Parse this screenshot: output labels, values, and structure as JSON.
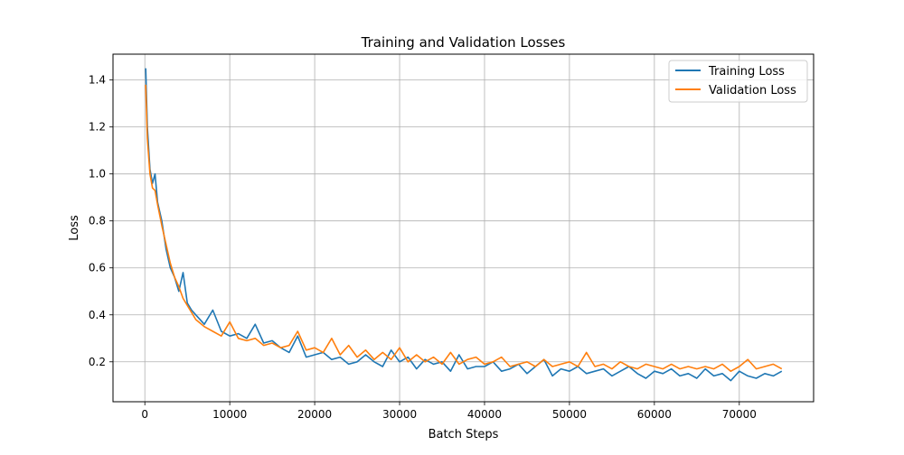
{
  "chart_data": {
    "type": "line",
    "title": "Training and Validation Losses",
    "xlabel": "Batch Steps",
    "ylabel": "Loss",
    "xlim": [
      -3750,
      78750
    ],
    "ylim": [
      0.03,
      1.51
    ],
    "xticks": [
      0,
      10000,
      20000,
      30000,
      40000,
      50000,
      60000,
      70000
    ],
    "xtick_labels": [
      "0",
      "10000",
      "20000",
      "30000",
      "40000",
      "50000",
      "60000",
      "70000"
    ],
    "yticks": [
      0.2,
      0.4,
      0.6,
      0.8,
      1.0,
      1.2,
      1.4
    ],
    "ytick_labels": [
      "0.2",
      "0.4",
      "0.6",
      "0.8",
      "1.0",
      "1.2",
      "1.4"
    ],
    "grid": true,
    "legend_position": "top-right",
    "series": [
      {
        "name": "Training Loss",
        "color": "#1f77b4",
        "x": [
          100,
          300,
          600,
          900,
          1200,
          1500,
          2000,
          2500,
          3000,
          3500,
          4000,
          4500,
          5000,
          5500,
          6000,
          7000,
          8000,
          9000,
          10000,
          11000,
          12000,
          13000,
          14000,
          15000,
          16000,
          17000,
          18000,
          19000,
          20000,
          21000,
          22000,
          23000,
          24000,
          25000,
          26000,
          27000,
          28000,
          29000,
          30000,
          31000,
          32000,
          33000,
          34000,
          35000,
          36000,
          37000,
          38000,
          39000,
          40000,
          41000,
          42000,
          43000,
          44000,
          45000,
          46000,
          47000,
          48000,
          49000,
          50000,
          51000,
          52000,
          53000,
          54000,
          55000,
          56000,
          57000,
          58000,
          59000,
          60000,
          61000,
          62000,
          63000,
          64000,
          65000,
          66000,
          67000,
          68000,
          69000,
          70000,
          71000,
          72000,
          73000,
          74000,
          75000
        ],
        "y": [
          1.45,
          1.2,
          1.02,
          0.96,
          1.0,
          0.88,
          0.8,
          0.68,
          0.6,
          0.56,
          0.5,
          0.58,
          0.45,
          0.42,
          0.4,
          0.36,
          0.42,
          0.33,
          0.31,
          0.32,
          0.3,
          0.36,
          0.28,
          0.29,
          0.26,
          0.24,
          0.31,
          0.22,
          0.23,
          0.24,
          0.21,
          0.22,
          0.19,
          0.2,
          0.23,
          0.2,
          0.18,
          0.25,
          0.2,
          0.22,
          0.17,
          0.21,
          0.19,
          0.2,
          0.16,
          0.23,
          0.17,
          0.18,
          0.18,
          0.2,
          0.16,
          0.17,
          0.19,
          0.15,
          0.18,
          0.21,
          0.14,
          0.17,
          0.16,
          0.18,
          0.15,
          0.16,
          0.17,
          0.14,
          0.16,
          0.18,
          0.15,
          0.13,
          0.16,
          0.15,
          0.17,
          0.14,
          0.15,
          0.13,
          0.17,
          0.14,
          0.15,
          0.12,
          0.16,
          0.14,
          0.13,
          0.15,
          0.14,
          0.16
        ]
      },
      {
        "name": "Validation Loss",
        "color": "#ff7f0e",
        "x": [
          100,
          300,
          600,
          900,
          1200,
          1500,
          2000,
          2500,
          3000,
          3500,
          4000,
          4500,
          5000,
          5500,
          6000,
          7000,
          8000,
          9000,
          10000,
          11000,
          12000,
          13000,
          14000,
          15000,
          16000,
          17000,
          18000,
          19000,
          20000,
          21000,
          22000,
          23000,
          24000,
          25000,
          26000,
          27000,
          28000,
          29000,
          30000,
          31000,
          32000,
          33000,
          34000,
          35000,
          36000,
          37000,
          38000,
          39000,
          40000,
          41000,
          42000,
          43000,
          44000,
          45000,
          46000,
          47000,
          48000,
          49000,
          50000,
          51000,
          52000,
          53000,
          54000,
          55000,
          56000,
          57000,
          58000,
          59000,
          60000,
          61000,
          62000,
          63000,
          64000,
          65000,
          66000,
          67000,
          68000,
          69000,
          70000,
          71000,
          72000,
          73000,
          74000,
          75000
        ],
        "y": [
          1.38,
          1.15,
          1.0,
          0.94,
          0.93,
          0.87,
          0.78,
          0.7,
          0.62,
          0.56,
          0.52,
          0.47,
          0.44,
          0.41,
          0.38,
          0.35,
          0.33,
          0.31,
          0.37,
          0.3,
          0.29,
          0.3,
          0.27,
          0.28,
          0.26,
          0.27,
          0.33,
          0.25,
          0.26,
          0.24,
          0.3,
          0.23,
          0.27,
          0.22,
          0.25,
          0.21,
          0.24,
          0.21,
          0.26,
          0.2,
          0.23,
          0.2,
          0.22,
          0.19,
          0.24,
          0.19,
          0.21,
          0.22,
          0.19,
          0.2,
          0.22,
          0.18,
          0.19,
          0.2,
          0.18,
          0.21,
          0.18,
          0.19,
          0.2,
          0.18,
          0.24,
          0.18,
          0.19,
          0.17,
          0.2,
          0.18,
          0.17,
          0.19,
          0.18,
          0.17,
          0.19,
          0.17,
          0.18,
          0.17,
          0.18,
          0.17,
          0.19,
          0.16,
          0.18,
          0.21,
          0.17,
          0.18,
          0.19,
          0.17
        ]
      }
    ]
  }
}
